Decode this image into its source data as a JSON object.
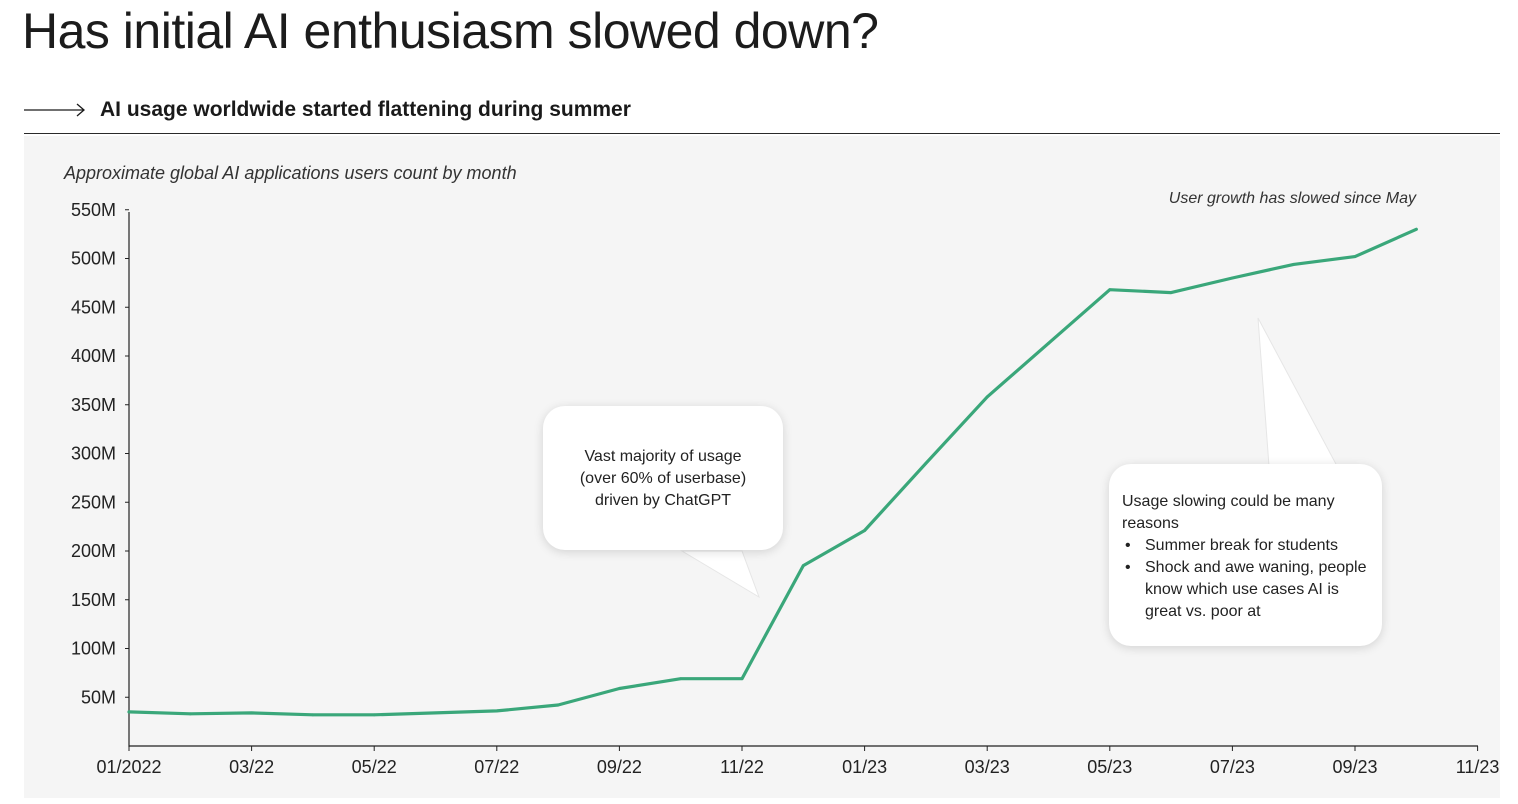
{
  "header": {
    "title": "Has initial AI enthusiasm slowed down?",
    "subtitle": "AI usage worldwide started flattening during summer"
  },
  "chart_data": {
    "type": "line",
    "title": "Approximate global AI applications users count by month",
    "xlabel": "",
    "ylabel": "",
    "x": [
      "01/2022",
      "02/22",
      "03/22",
      "04/22",
      "05/22",
      "06/22",
      "07/22",
      "08/22",
      "09/22",
      "10/22",
      "11/22",
      "12/22",
      "01/23",
      "02/23",
      "03/23",
      "04/23",
      "05/23",
      "06/23",
      "07/23",
      "08/23",
      "09/23",
      "10/23"
    ],
    "x_tick_labels": [
      "01/2022",
      "03/22",
      "05/22",
      "07/22",
      "09/22",
      "11/22",
      "01/23",
      "03/23",
      "05/23",
      "07/23",
      "09/23",
      "11/23"
    ],
    "y_tick_labels": [
      "50M",
      "100M",
      "150M",
      "200M",
      "250M",
      "300M",
      "350M",
      "400M",
      "450M",
      "500M",
      "550M"
    ],
    "ylim": [
      0,
      550
    ],
    "y_unit": "M",
    "series": [
      {
        "values": [
          35,
          33,
          34,
          32,
          32,
          34,
          36,
          42,
          59,
          69,
          69,
          185,
          221,
          290,
          358,
          413,
          468,
          465,
          480,
          494,
          502,
          530
        ]
      }
    ],
    "line_color": "#3aa77a",
    "grid": false,
    "annotations": {
      "top_note": "User growth has slowed since May",
      "chatgpt": [
        "Vast majority of usage",
        "(over 60% of userbase)",
        "driven by ChatGPT"
      ],
      "slowing_intro": "Usage slowing could be many reasons",
      "slowing_bullets": [
        "Summer break for students",
        "Shock and awe waning, people know which use cases AI is great vs. poor at"
      ]
    }
  }
}
